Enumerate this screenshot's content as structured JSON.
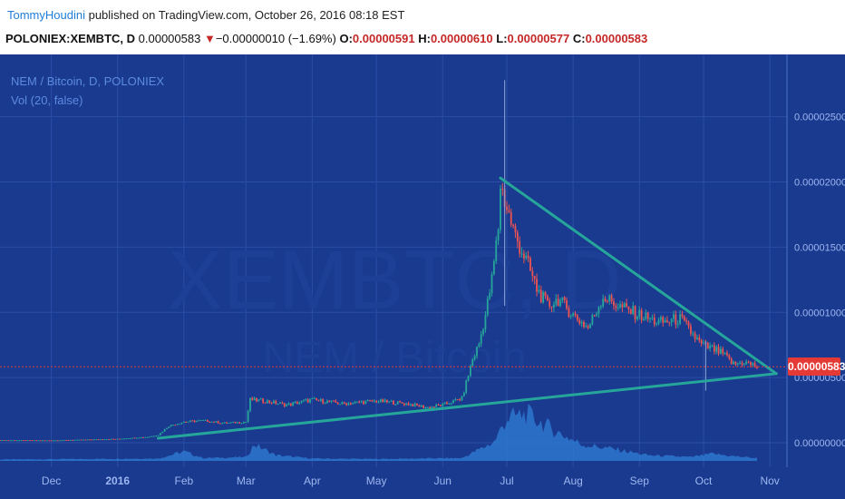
{
  "header": {
    "author": "TommyHoudini",
    "published_text": " published on TradingView.com, October 26, 2016 08:18 EST"
  },
  "quote": {
    "symbol": "POLONIEX:XEMBTC, D",
    "last": "0.00000583",
    "down_arrow": "▼",
    "change": "−0.00000010 (−1.69%)",
    "open_label": "O:",
    "open": "0.00000591",
    "high_label": "H:",
    "high": "0.00000610",
    "low_label": "L:",
    "low": "0.00000577",
    "close_label": "C:",
    "close": "0.00000583"
  },
  "legend": {
    "title": "NEM / Bitcoin, D, POLONIEX",
    "indicator": "Vol (20, false)"
  },
  "watermark": {
    "symbol": "XEMBTC, D",
    "name": "NEM / Bitcoin"
  },
  "colors": {
    "background": "#1a3a8f",
    "trendline": "#26a69a",
    "up_candle": "#26a69a",
    "down_candle": "#ef5350",
    "volume": "#2f7fd6",
    "price_badge": "#e53935"
  },
  "chart_data": {
    "type": "candlestick",
    "title": "NEM / Bitcoin, D, POLONIEX",
    "y_axis": {
      "ticks": [
        "0.00002500",
        "0.00002000",
        "0.00001500",
        "0.00001000",
        "0.00000500",
        "0.00000000"
      ],
      "tick_values": [
        2.5e-05,
        2e-05,
        1.5e-05,
        1e-05,
        5e-06,
        0
      ],
      "range": [
        0,
        2.88e-05
      ]
    },
    "x_axis": {
      "labels": [
        "Dec",
        "2016",
        "Feb",
        "Mar",
        "Apr",
        "May",
        "Jun",
        "Jul",
        "Aug",
        "Sep",
        "Oct",
        "Nov"
      ],
      "dates": [
        "2015-12-01",
        "2016-01-01",
        "2016-02-01",
        "2016-03-01",
        "2016-04-01",
        "2016-05-01",
        "2016-06-01",
        "2016-07-01",
        "2016-08-01",
        "2016-09-01",
        "2016-10-01",
        "2016-11-01"
      ],
      "range": [
        "2015-11-07",
        "2016-11-09"
      ]
    },
    "current_price": "0.00000583",
    "current_value": 5.83e-06,
    "trendlines": [
      {
        "name": "upper",
        "from": {
          "date": "2016-06-28",
          "price": 2.03e-05
        },
        "to": {
          "date": "2016-11-04",
          "price": 5.3e-06
        }
      },
      {
        "name": "lower",
        "from": {
          "date": "2016-01-20",
          "price": 3.5e-07
        },
        "to": {
          "date": "2016-11-04",
          "price": 5.3e-06
        }
      }
    ],
    "price_path": [
      [
        "2015-11-07",
        2e-07
      ],
      [
        "2015-12-01",
        1.8e-07
      ],
      [
        "2016-01-01",
        3e-07
      ],
      [
        "2016-01-15",
        4.5e-07
      ],
      [
        "2016-01-20",
        6e-07
      ],
      [
        "2016-01-25",
        1.3e-06
      ],
      [
        "2016-02-01",
        1.6e-06
      ],
      [
        "2016-02-10",
        1.7e-06
      ],
      [
        "2016-02-20",
        1.5e-06
      ],
      [
        "2016-03-01",
        1.6e-06
      ],
      [
        "2016-03-03",
        3.3e-06
      ],
      [
        "2016-03-10",
        3.2e-06
      ],
      [
        "2016-03-20",
        2.9e-06
      ],
      [
        "2016-04-01",
        3.3e-06
      ],
      [
        "2016-04-15",
        3e-06
      ],
      [
        "2016-05-01",
        3.2e-06
      ],
      [
        "2016-05-15",
        3e-06
      ],
      [
        "2016-05-25",
        2.7e-06
      ],
      [
        "2016-06-01",
        2.9e-06
      ],
      [
        "2016-06-10",
        3.4e-06
      ],
      [
        "2016-06-15",
        6.4e-06
      ],
      [
        "2016-06-18",
        7.6e-06
      ],
      [
        "2016-06-21",
        9.8e-06
      ],
      [
        "2016-06-24",
        1.25e-05
      ],
      [
        "2016-06-27",
        1.65e-05
      ],
      [
        "2016-06-28",
        1.98e-05
      ],
      [
        "2016-07-01",
        1.8e-05
      ],
      [
        "2016-07-05",
        1.58e-05
      ],
      [
        "2016-07-10",
        1.4e-05
      ],
      [
        "2016-07-15",
        1.18e-05
      ],
      [
        "2016-07-20",
        1.05e-05
      ],
      [
        "2016-07-25",
        1.1e-05
      ],
      [
        "2016-08-01",
        9.8e-06
      ],
      [
        "2016-08-08",
        8.8e-06
      ],
      [
        "2016-08-15",
        1.12e-05
      ],
      [
        "2016-08-22",
        1.05e-05
      ],
      [
        "2016-09-01",
        9.8e-06
      ],
      [
        "2016-09-10",
        9.2e-06
      ],
      [
        "2016-09-20",
        9.5e-06
      ],
      [
        "2016-09-30",
        7.5e-06
      ],
      [
        "2016-10-05",
        7.2e-06
      ],
      [
        "2016-10-10",
        6.8e-06
      ],
      [
        "2016-10-15",
        6e-06
      ],
      [
        "2016-10-20",
        6.2e-06
      ],
      [
        "2016-10-26",
        5.8e-06
      ]
    ],
    "spikes": [
      {
        "date": "2016-06-30",
        "high": 2.78e-05,
        "low": 1.05e-05
      },
      {
        "date": "2016-10-02",
        "high": 7.8e-06,
        "low": 4e-06
      }
    ],
    "volume_profile": [
      [
        "2015-11-07",
        0.03
      ],
      [
        "2016-01-20",
        0.05
      ],
      [
        "2016-02-01",
        0.2
      ],
      [
        "2016-02-10",
        0.06
      ],
      [
        "2016-03-01",
        0.08
      ],
      [
        "2016-03-05",
        0.35
      ],
      [
        "2016-03-15",
        0.12
      ],
      [
        "2016-04-01",
        0.05
      ],
      [
        "2016-05-01",
        0.04
      ],
      [
        "2016-06-10",
        0.06
      ],
      [
        "2016-06-25",
        0.4
      ],
      [
        "2016-07-01",
        0.9
      ],
      [
        "2016-07-10",
        1.0
      ],
      [
        "2016-07-25",
        0.6
      ],
      [
        "2016-08-05",
        0.35
      ],
      [
        "2016-08-20",
        0.25
      ],
      [
        "2016-09-05",
        0.12
      ],
      [
        "2016-09-25",
        0.08
      ],
      [
        "2016-10-05",
        0.15
      ],
      [
        "2016-10-15",
        0.1
      ],
      [
        "2016-10-26",
        0.06
      ]
    ]
  }
}
